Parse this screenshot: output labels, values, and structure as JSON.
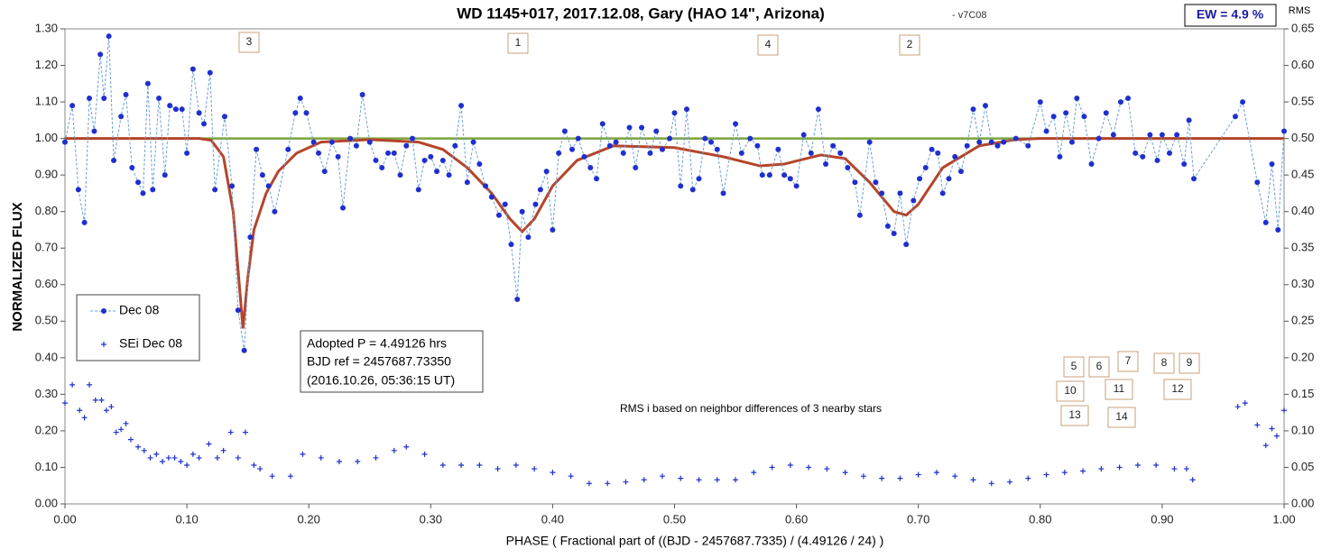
{
  "chart_data": {
    "type": "scatter",
    "title": "WD 1145+017, 2017.12.08, Gary  (HAO 14\", Arizona)",
    "subtitle": "- v7C08",
    "ew_label": "EW =  4.9 %",
    "x_label": "PHASE  ( Fractional part of ((BJD - 2457687.7335)  / (4.49126  / 24) )",
    "y_label": "NORMALIZED  FLUX",
    "y2_label": "RMS",
    "info_lines": [
      "Adopted P = 4.49126 hrs",
      "BJD ref = 2457687.73350",
      "(2016.10.26, 05:36:15 UT)"
    ],
    "rms_note": "RMS i based on neighbor differences of 3 nearby stars",
    "dip_labels": [
      "3",
      "1",
      "4",
      "2"
    ],
    "group_labels": [
      "5",
      "6",
      "7",
      "8",
      "9",
      "10",
      "11",
      "12",
      "13",
      "14"
    ],
    "xlim": [
      0,
      1
    ],
    "ylim": [
      0,
      1.3
    ],
    "y2lim": [
      0,
      0.65
    ],
    "xticks": [
      {
        "value": 0,
        "label": "0.00"
      },
      {
        "value": 0.1,
        "label": "0.10"
      },
      {
        "value": 0.2,
        "label": "0.20"
      },
      {
        "value": 0.3,
        "label": "0.30"
      },
      {
        "value": 0.4,
        "label": "0.40"
      },
      {
        "value": 0.5,
        "label": "0.50"
      },
      {
        "value": 0.6,
        "label": "0.60"
      },
      {
        "value": 0.7,
        "label": "0.70"
      },
      {
        "value": 0.8,
        "label": "0.80"
      },
      {
        "value": 0.9,
        "label": "0.90"
      },
      {
        "value": 1,
        "label": "1.00"
      }
    ],
    "yticks": [
      {
        "value": 0,
        "label": "0.00"
      },
      {
        "value": 0.1,
        "label": "0.10"
      },
      {
        "value": 0.2,
        "label": "0.20"
      },
      {
        "value": 0.3,
        "label": "0.30"
      },
      {
        "value": 0.4,
        "label": "0.40"
      },
      {
        "value": 0.5,
        "label": "0.50"
      },
      {
        "value": 0.6,
        "label": "0.60"
      },
      {
        "value": 0.7,
        "label": "0.70"
      },
      {
        "value": 0.8,
        "label": "0.80"
      },
      {
        "value": 0.9,
        "label": "0.90"
      },
      {
        "value": 1,
        "label": "1.00"
      },
      {
        "value": 1.1,
        "label": "1.10"
      },
      {
        "value": 1.2,
        "label": "1.20"
      },
      {
        "value": 1.3,
        "label": "1.30"
      }
    ],
    "y2ticks": [
      {
        "value": 0,
        "label": "0.00"
      },
      {
        "value": 0.05,
        "label": "0.05"
      },
      {
        "value": 0.1,
        "label": "0.10"
      },
      {
        "value": 0.15,
        "label": "0.15"
      },
      {
        "value": 0.2,
        "label": "0.20"
      },
      {
        "value": 0.25,
        "label": "0.25"
      },
      {
        "value": 0.3,
        "label": "0.30"
      },
      {
        "value": 0.35,
        "label": "0.35"
      },
      {
        "value": 0.4,
        "label": "0.40"
      },
      {
        "value": 0.45,
        "label": "0.45"
      },
      {
        "value": 0.5,
        "label": "0.50"
      },
      {
        "value": 0.55,
        "label": "0.55"
      },
      {
        "value": 0.6,
        "label": "0.60"
      },
      {
        "value": 0.65,
        "label": "0.65"
      }
    ],
    "reference_line": {
      "value": 1,
      "color": "#7aa33a"
    },
    "model": {
      "color": "#b5452a",
      "x": [
        0,
        0.11,
        0.12,
        0.13,
        0.138,
        0.143,
        0.146,
        0.15,
        0.155,
        0.165,
        0.175,
        0.19,
        0.21,
        0.25,
        0.29,
        0.31,
        0.33,
        0.35,
        0.365,
        0.375,
        0.385,
        0.4,
        0.42,
        0.45,
        0.5,
        0.54,
        0.57,
        0.59,
        0.62,
        0.64,
        0.66,
        0.68,
        0.69,
        0.7,
        0.72,
        0.75,
        0.78,
        0.8,
        1
      ],
      "values": [
        1,
        1,
        0.995,
        0.95,
        0.8,
        0.6,
        0.48,
        0.62,
        0.75,
        0.85,
        0.91,
        0.96,
        0.99,
        0.997,
        0.99,
        0.97,
        0.92,
        0.85,
        0.78,
        0.745,
        0.78,
        0.87,
        0.94,
        0.98,
        0.975,
        0.95,
        0.925,
        0.93,
        0.955,
        0.945,
        0.88,
        0.8,
        0.79,
        0.82,
        0.92,
        0.98,
        0.997,
        1,
        1
      ]
    },
    "series": [
      {
        "name": "Dec 08",
        "color": "#1f2fcf",
        "x": [
          0,
          0.006,
          0.011,
          0.016,
          0.02,
          0.024,
          0.029,
          0.032,
          0.036,
          0.04,
          0.046,
          0.05,
          0.055,
          0.06,
          0.064,
          0.068,
          0.072,
          0.077,
          0.082,
          0.086,
          0.091,
          0.096,
          0.1,
          0.105,
          0.11,
          0.114,
          0.119,
          0.123,
          0.131,
          0.137,
          0.142,
          0.147,
          0.152,
          0.157,
          0.162,
          0.167,
          0.172,
          0.183,
          0.189,
          0.193,
          0.198,
          0.204,
          0.208,
          0.213,
          0.219,
          0.224,
          0.228,
          0.234,
          0.239,
          0.244,
          0.25,
          0.255,
          0.26,
          0.265,
          0.27,
          0.275,
          0.28,
          0.285,
          0.29,
          0.295,
          0.3,
          0.305,
          0.31,
          0.315,
          0.32,
          0.325,
          0.33,
          0.335,
          0.34,
          0.345,
          0.35,
          0.356,
          0.361,
          0.366,
          0.371,
          0.375,
          0.38,
          0.386,
          0.39,
          0.395,
          0.4,
          0.405,
          0.41,
          0.416,
          0.421,
          0.426,
          0.431,
          0.436,
          0.441,
          0.447,
          0.452,
          0.458,
          0.463,
          0.468,
          0.473,
          0.48,
          0.485,
          0.49,
          0.496,
          0.5,
          0.505,
          0.51,
          0.515,
          0.52,
          0.525,
          0.53,
          0.535,
          0.54,
          0.55,
          0.555,
          0.562,
          0.568,
          0.572,
          0.578,
          0.585,
          0.59,
          0.595,
          0.6,
          0.606,
          0.612,
          0.618,
          0.624,
          0.63,
          0.636,
          0.642,
          0.648,
          0.652,
          0.66,
          0.665,
          0.67,
          0.675,
          0.68,
          0.685,
          0.69,
          0.696,
          0.701,
          0.706,
          0.711,
          0.716,
          0.72,
          0.725,
          0.73,
          0.735,
          0.74,
          0.745,
          0.75,
          0.755,
          0.76,
          0.765,
          0.77,
          0.78,
          0.79,
          0.8,
          0.805,
          0.811,
          0.816,
          0.821,
          0.826,
          0.83,
          0.836,
          0.842,
          0.848,
          0.854,
          0.86,
          0.866,
          0.872,
          0.878,
          0.884,
          0.89,
          0.896,
          0.9,
          0.906,
          0.912,
          0.918,
          0.922,
          0.926,
          0.96,
          0.966,
          0.978,
          0.985,
          0.99,
          0.995,
          1
        ],
        "values": [
          0.99,
          1.09,
          0.86,
          0.77,
          1.11,
          1.02,
          1.23,
          1.11,
          1.28,
          0.94,
          1.06,
          1.12,
          0.92,
          0.88,
          0.85,
          1.15,
          0.86,
          1.11,
          0.9,
          1.09,
          1.08,
          1.08,
          0.96,
          1.19,
          1.07,
          1.04,
          1.18,
          0.86,
          1.06,
          0.87,
          0.53,
          0.42,
          0.73,
          0.97,
          0.9,
          0.87,
          0.8,
          0.97,
          1.07,
          1.11,
          1.07,
          0.99,
          0.96,
          0.91,
          0.99,
          0.95,
          0.81,
          1,
          0.98,
          1.12,
          0.99,
          0.94,
          0.92,
          0.96,
          0.96,
          0.9,
          0.98,
          1,
          0.86,
          0.94,
          0.95,
          0.91,
          0.94,
          0.9,
          0.98,
          1.09,
          0.88,
          0.99,
          0.93,
          0.87,
          0.84,
          0.79,
          0.82,
          0.71,
          0.56,
          0.8,
          0.73,
          0.82,
          0.86,
          0.91,
          0.75,
          0.96,
          1.02,
          0.97,
          1,
          0.95,
          0.92,
          0.89,
          1.04,
          0.98,
          0.99,
          0.96,
          1.03,
          0.92,
          1.03,
          0.96,
          1.02,
          0.97,
          1,
          1.07,
          0.87,
          1.08,
          0.86,
          0.89,
          1,
          0.99,
          0.97,
          0.85,
          1.04,
          0.96,
          1,
          0.98,
          0.9,
          0.9,
          0.97,
          0.9,
          0.89,
          0.87,
          1.01,
          0.96,
          1.08,
          0.93,
          0.98,
          0.96,
          0.92,
          0.88,
          0.79,
          0.99,
          0.88,
          0.85,
          0.76,
          0.74,
          0.85,
          0.71,
          0.83,
          0.89,
          0.92,
          0.97,
          0.96,
          0.85,
          0.89,
          0.95,
          0.91,
          0.98,
          1.08,
          0.99,
          1.09,
          0.99,
          0.98,
          0.99,
          1,
          0.98,
          1.1,
          1.02,
          1.06,
          0.95,
          1.07,
          0.99,
          1.11,
          1.06,
          0.93,
          1,
          1.07,
          1.01,
          1.1,
          1.11,
          0.96,
          0.95,
          1.01,
          0.94,
          1.01,
          0.96,
          1.01,
          0.93,
          1.05,
          0.89,
          1.06,
          1.1,
          0.88,
          0.77,
          0.93,
          0.75,
          1.02
        ]
      },
      {
        "name": "SEi Dec 08",
        "color": "#1f2fcf",
        "axis": "y2",
        "x": [
          0,
          0.006,
          0.012,
          0.016,
          0.02,
          0.025,
          0.03,
          0.034,
          0.038,
          0.042,
          0.046,
          0.05,
          0.054,
          0.06,
          0.065,
          0.07,
          0.075,
          0.08,
          0.085,
          0.09,
          0.095,
          0.1,
          0.105,
          0.11,
          0.118,
          0.125,
          0.13,
          0.136,
          0.142,
          0.148,
          0.155,
          0.16,
          0.17,
          0.185,
          0.195,
          0.21,
          0.225,
          0.24,
          0.255,
          0.27,
          0.28,
          0.295,
          0.31,
          0.325,
          0.34,
          0.355,
          0.37,
          0.385,
          0.4,
          0.415,
          0.43,
          0.445,
          0.46,
          0.475,
          0.49,
          0.505,
          0.52,
          0.535,
          0.55,
          0.565,
          0.58,
          0.595,
          0.61,
          0.625,
          0.64,
          0.655,
          0.67,
          0.685,
          0.7,
          0.715,
          0.73,
          0.745,
          0.76,
          0.775,
          0.79,
          0.805,
          0.82,
          0.835,
          0.85,
          0.865,
          0.88,
          0.895,
          0.91,
          0.92,
          0.925,
          0.962,
          0.968,
          0.978,
          0.985,
          0.99,
          0.994,
          1
        ],
        "values": [
          0.138,
          0.163,
          0.128,
          0.118,
          0.163,
          0.142,
          0.142,
          0.128,
          0.133,
          0.098,
          0.102,
          0.11,
          0.088,
          0.078,
          0.073,
          0.063,
          0.068,
          0.058,
          0.063,
          0.063,
          0.058,
          0.053,
          0.068,
          0.063,
          0.082,
          0.063,
          0.073,
          0.098,
          0.063,
          0.098,
          0.053,
          0.048,
          0.038,
          0.038,
          0.068,
          0.063,
          0.058,
          0.058,
          0.063,
          0.073,
          0.078,
          0.068,
          0.053,
          0.053,
          0.053,
          0.048,
          0.053,
          0.048,
          0.043,
          0.038,
          0.028,
          0.028,
          0.03,
          0.033,
          0.038,
          0.035,
          0.033,
          0.033,
          0.033,
          0.043,
          0.05,
          0.053,
          0.05,
          0.048,
          0.043,
          0.038,
          0.035,
          0.035,
          0.04,
          0.043,
          0.038,
          0.033,
          0.028,
          0.03,
          0.035,
          0.04,
          0.043,
          0.045,
          0.048,
          0.05,
          0.053,
          0.053,
          0.048,
          0.048,
          0.033,
          0.133,
          0.138,
          0.108,
          0.08,
          0.103,
          0.093,
          0.128
        ]
      }
    ]
  }
}
